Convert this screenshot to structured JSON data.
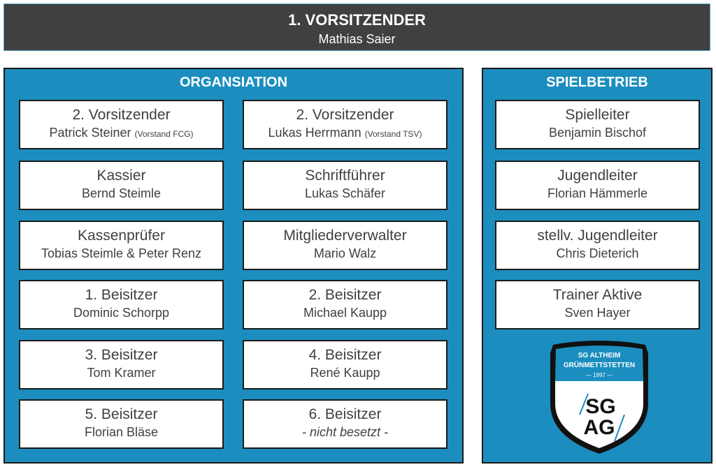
{
  "header": {
    "title": "1. VORSITZENDER",
    "name": "Mathias Saier"
  },
  "organisation": {
    "title": "ORGANSIATION",
    "items": [
      {
        "role": "2. Vorsitzender",
        "name": "Patrick Steiner",
        "note": "(Vorstand FCG)"
      },
      {
        "role": "2. Vorsitzender",
        "name": "Lukas Herrmann",
        "note": "(Vorstand TSV)"
      },
      {
        "role": "Kassier",
        "name": "Bernd Steimle"
      },
      {
        "role": "Schriftführer",
        "name": "Lukas Schäfer"
      },
      {
        "role": "Kassenprüfer",
        "name": "Tobias Steimle & Peter Renz"
      },
      {
        "role": "Mitgliederverwalter",
        "name": "Mario Walz"
      },
      {
        "role": "1. Beisitzer",
        "name": "Dominic Schorpp"
      },
      {
        "role": "2. Beisitzer",
        "name": "Michael Kaupp"
      },
      {
        "role": "3. Beisitzer",
        "name": "Tom Kramer"
      },
      {
        "role": "4. Beisitzer",
        "name": "René Kaupp"
      },
      {
        "role": "5. Beisitzer",
        "name": "Florian Bläse"
      },
      {
        "role": "6. Beisitzer",
        "name": "- nicht besetzt -"
      }
    ]
  },
  "spielbetrieb": {
    "title": "SPIELBETRIEB",
    "items": [
      {
        "role": "Spielleiter",
        "name": "Benjamin Bischof"
      },
      {
        "role": "Jugendleiter",
        "name": "Florian Hämmerle"
      },
      {
        "role": "stellv. Jugendleiter",
        "name": "Chris Dieterich"
      },
      {
        "role": "Trainer Aktive",
        "name": "Sven Hayer"
      }
    ]
  },
  "logo": {
    "line1": "SG ALTHEIM",
    "line2": "GRÜNMETTSTETTEN",
    "year": "— 1997 —",
    "mark1": "SG",
    "mark2": "AG"
  },
  "colors": {
    "header": "#404040",
    "panel": "#1b8ebf"
  }
}
